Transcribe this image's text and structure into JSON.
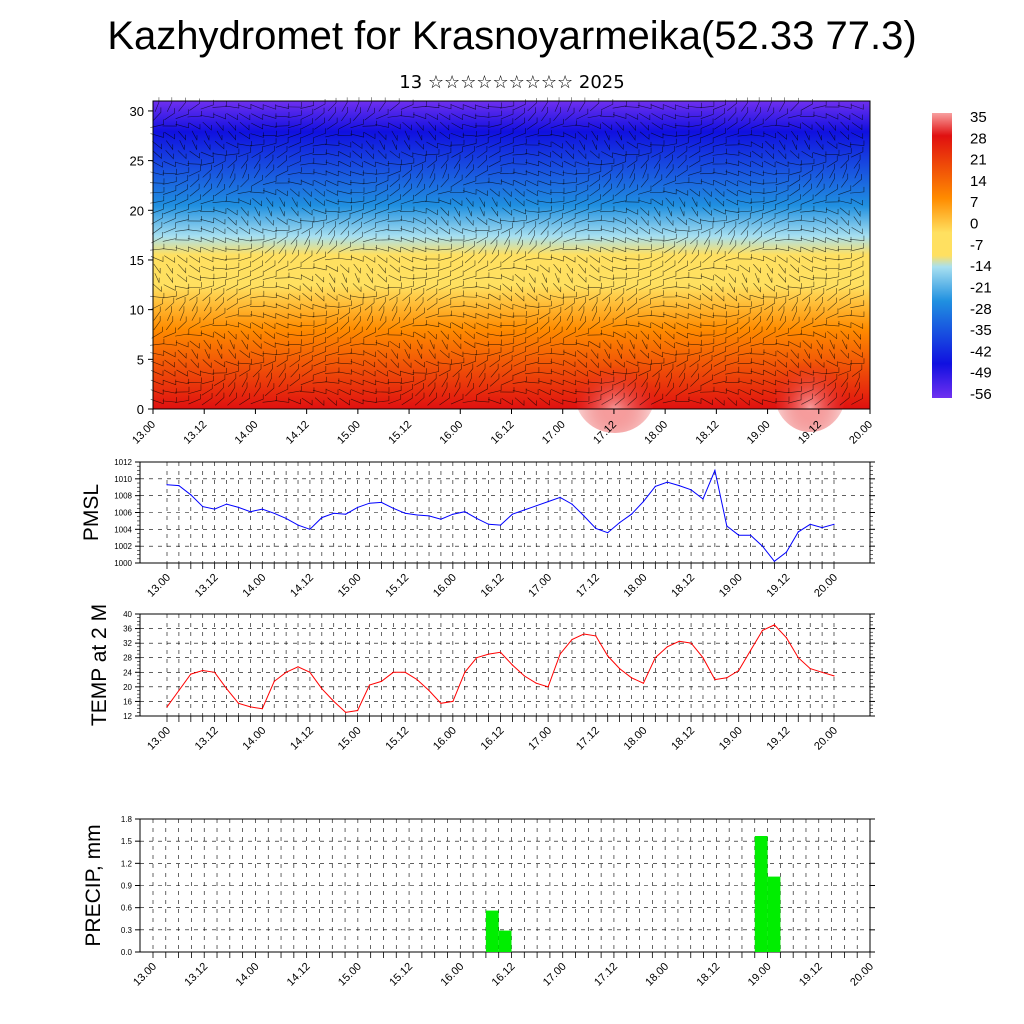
{
  "title": "Kazhydromet for Krasnoyarmeika(52.33 77.3)",
  "subtitle": "13 ☆☆☆☆☆☆☆☆☆ 2025",
  "time_labels": [
    "13.00",
    "13.12",
    "14.00",
    "14.12",
    "15.00",
    "15.12",
    "16.00",
    "16.12",
    "17.00",
    "17.12",
    "18.00",
    "18.12",
    "19.00",
    "19.12",
    "20.00"
  ],
  "chart_data": [
    {
      "type": "heatmap",
      "name_hint": "upper-air cross-section",
      "y_ticks": [
        0,
        5,
        10,
        15,
        20,
        25,
        30
      ],
      "ylim": [
        0,
        31
      ],
      "colorbar_labels": [
        "35",
        "28",
        "21",
        "14",
        "7",
        "0",
        "-7",
        "-14",
        "-21",
        "-28",
        "-35",
        "-42",
        "-49",
        "-56"
      ],
      "colors": {
        "hot": "#e01010",
        "warm": "#ff8c00",
        "mid": "#ffe060",
        "cool": "#a8e0f0",
        "cold": "#2090e0",
        "coldest": "#1010e0",
        "violet": "#7030f0",
        "peak": "#f8a0a0"
      }
    },
    {
      "type": "line",
      "ylabel": "PMSL",
      "ylim": [
        1000,
        1012
      ],
      "y_ticks": [
        "1000",
        "1002",
        "1004",
        "1006",
        "1008",
        "1010",
        "1012"
      ],
      "color": "#0000ff",
      "x": [
        0,
        1,
        2,
        3,
        4,
        5,
        6,
        7,
        8,
        9,
        10,
        11,
        12,
        13,
        14,
        15,
        16,
        17,
        18,
        19,
        20,
        21,
        22,
        23,
        24,
        25,
        26,
        27,
        28,
        29,
        30,
        31,
        32,
        33,
        34,
        35,
        36,
        37,
        38,
        39,
        40,
        41,
        42,
        43,
        44,
        45,
        46,
        47,
        48,
        49,
        50,
        51,
        52,
        53,
        54,
        55,
        56
      ],
      "values": [
        1009.3,
        1009.2,
        1008.1,
        1006.7,
        1006.4,
        1007.0,
        1006.6,
        1006.1,
        1006.4,
        1005.9,
        1005.3,
        1004.5,
        1004.0,
        1005.4,
        1005.9,
        1005.8,
        1006.6,
        1007.1,
        1007.2,
        1006.5,
        1005.9,
        1005.7,
        1005.6,
        1005.2,
        1005.8,
        1006.1,
        1005.3,
        1004.6,
        1004.5,
        1005.8,
        1006.3,
        1006.8,
        1007.3,
        1007.8,
        1007.0,
        1005.6,
        1004.1,
        1003.6,
        1004.8,
        1005.8,
        1007.3,
        1009.1,
        1009.6,
        1009.2,
        1008.7,
        1007.6,
        1011.0,
        1004.4,
        1003.3,
        1003.3,
        1002.0,
        1000.2,
        1001.3,
        1003.7,
        1004.6,
        1004.2,
        1004.6
      ]
    },
    {
      "type": "line",
      "ylabel": "TEMP at 2 M",
      "ylim": [
        12,
        40
      ],
      "y_ticks": [
        "12",
        "16",
        "20",
        "24",
        "28",
        "32",
        "36",
        "40"
      ],
      "color": "#ff0000",
      "x": [
        0,
        1,
        2,
        3,
        4,
        5,
        6,
        7,
        8,
        9,
        10,
        11,
        12,
        13,
        14,
        15,
        16,
        17,
        18,
        19,
        20,
        21,
        22,
        23,
        24,
        25,
        26,
        27,
        28,
        29,
        30,
        31,
        32,
        33,
        34,
        35,
        36,
        37,
        38,
        39,
        40,
        41,
        42,
        43,
        44,
        45,
        46,
        47,
        48,
        49,
        50,
        51,
        52,
        53,
        54,
        55,
        56
      ],
      "values": [
        14.5,
        19.0,
        23.5,
        24.5,
        24.0,
        19.5,
        15.5,
        14.5,
        14.0,
        21.5,
        24.0,
        25.5,
        24.0,
        19.5,
        16.0,
        13.0,
        13.5,
        20.5,
        21.5,
        24.0,
        24.0,
        22.0,
        19.0,
        15.5,
        16.0,
        24.0,
        28.0,
        29.0,
        29.5,
        26.0,
        23.0,
        21.0,
        20.0,
        29.0,
        33.0,
        34.5,
        34.0,
        28.5,
        25.0,
        22.5,
        21.0,
        28.0,
        31.0,
        32.5,
        32.0,
        28.0,
        22.0,
        22.5,
        24.5,
        30.0,
        35.5,
        37.0,
        33.5,
        28.0,
        25.0,
        24.0,
        23.0
      ]
    },
    {
      "type": "bar",
      "ylabel": "PRECIP, mm",
      "ylim": [
        0,
        1.8
      ],
      "y_ticks": [
        "0.0",
        "0.3",
        "0.6",
        "0.9",
        "1.2",
        "1.5",
        "1.8"
      ],
      "color": "#00ee00",
      "bars": [
        {
          "x": 26.5,
          "value": 0.56
        },
        {
          "x": 27.5,
          "value": 0.29
        },
        {
          "x": 47.5,
          "value": 1.57
        },
        {
          "x": 48.5,
          "value": 1.02
        }
      ]
    }
  ]
}
